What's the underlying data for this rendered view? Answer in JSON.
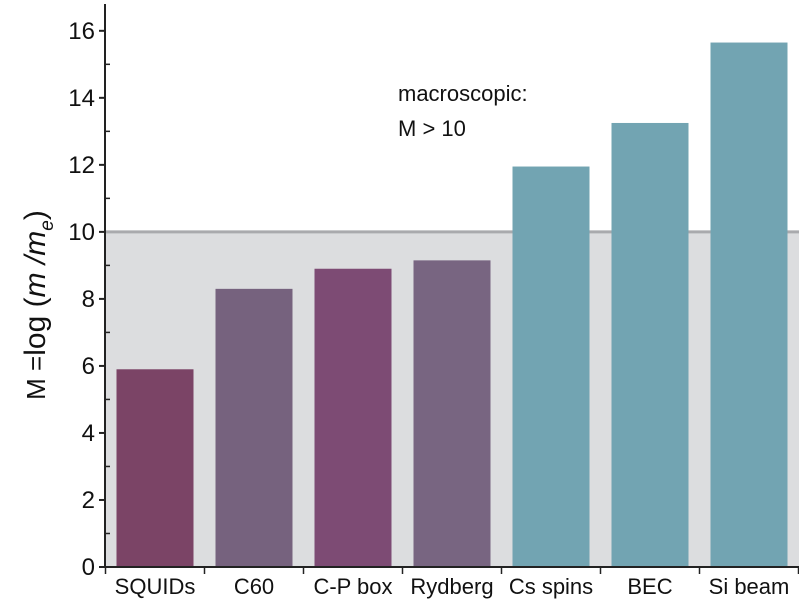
{
  "chart_data": {
    "type": "bar",
    "categories": [
      "SQUIDs",
      "C60",
      "C-P box",
      "Rydberg",
      "Cs spins",
      "BEC",
      "Si beam"
    ],
    "values": [
      5.9,
      8.3,
      8.9,
      9.15,
      11.95,
      13.25,
      15.65
    ],
    "colors": [
      "#7b4466",
      "#76627e",
      "#7d4b74",
      "#786581",
      "#72a4b2",
      "#72a4b2",
      "#72a4b2"
    ],
    "ylabel_parts": {
      "prefix": "M =",
      "func": "log",
      "open": " (",
      "var": "m",
      "slash": " /",
      "var2": "m",
      "sub": "e",
      "close": ")"
    },
    "ylim": [
      0,
      16.8
    ],
    "yticks": [
      0,
      2,
      4,
      6,
      8,
      10,
      12,
      14,
      16
    ],
    "threshold": 10,
    "shaded_region_color": "#dcdddf",
    "threshold_line_color": "#a9aaad",
    "annotation": {
      "line1": "macroscopic:",
      "line2": "M > 10"
    }
  }
}
